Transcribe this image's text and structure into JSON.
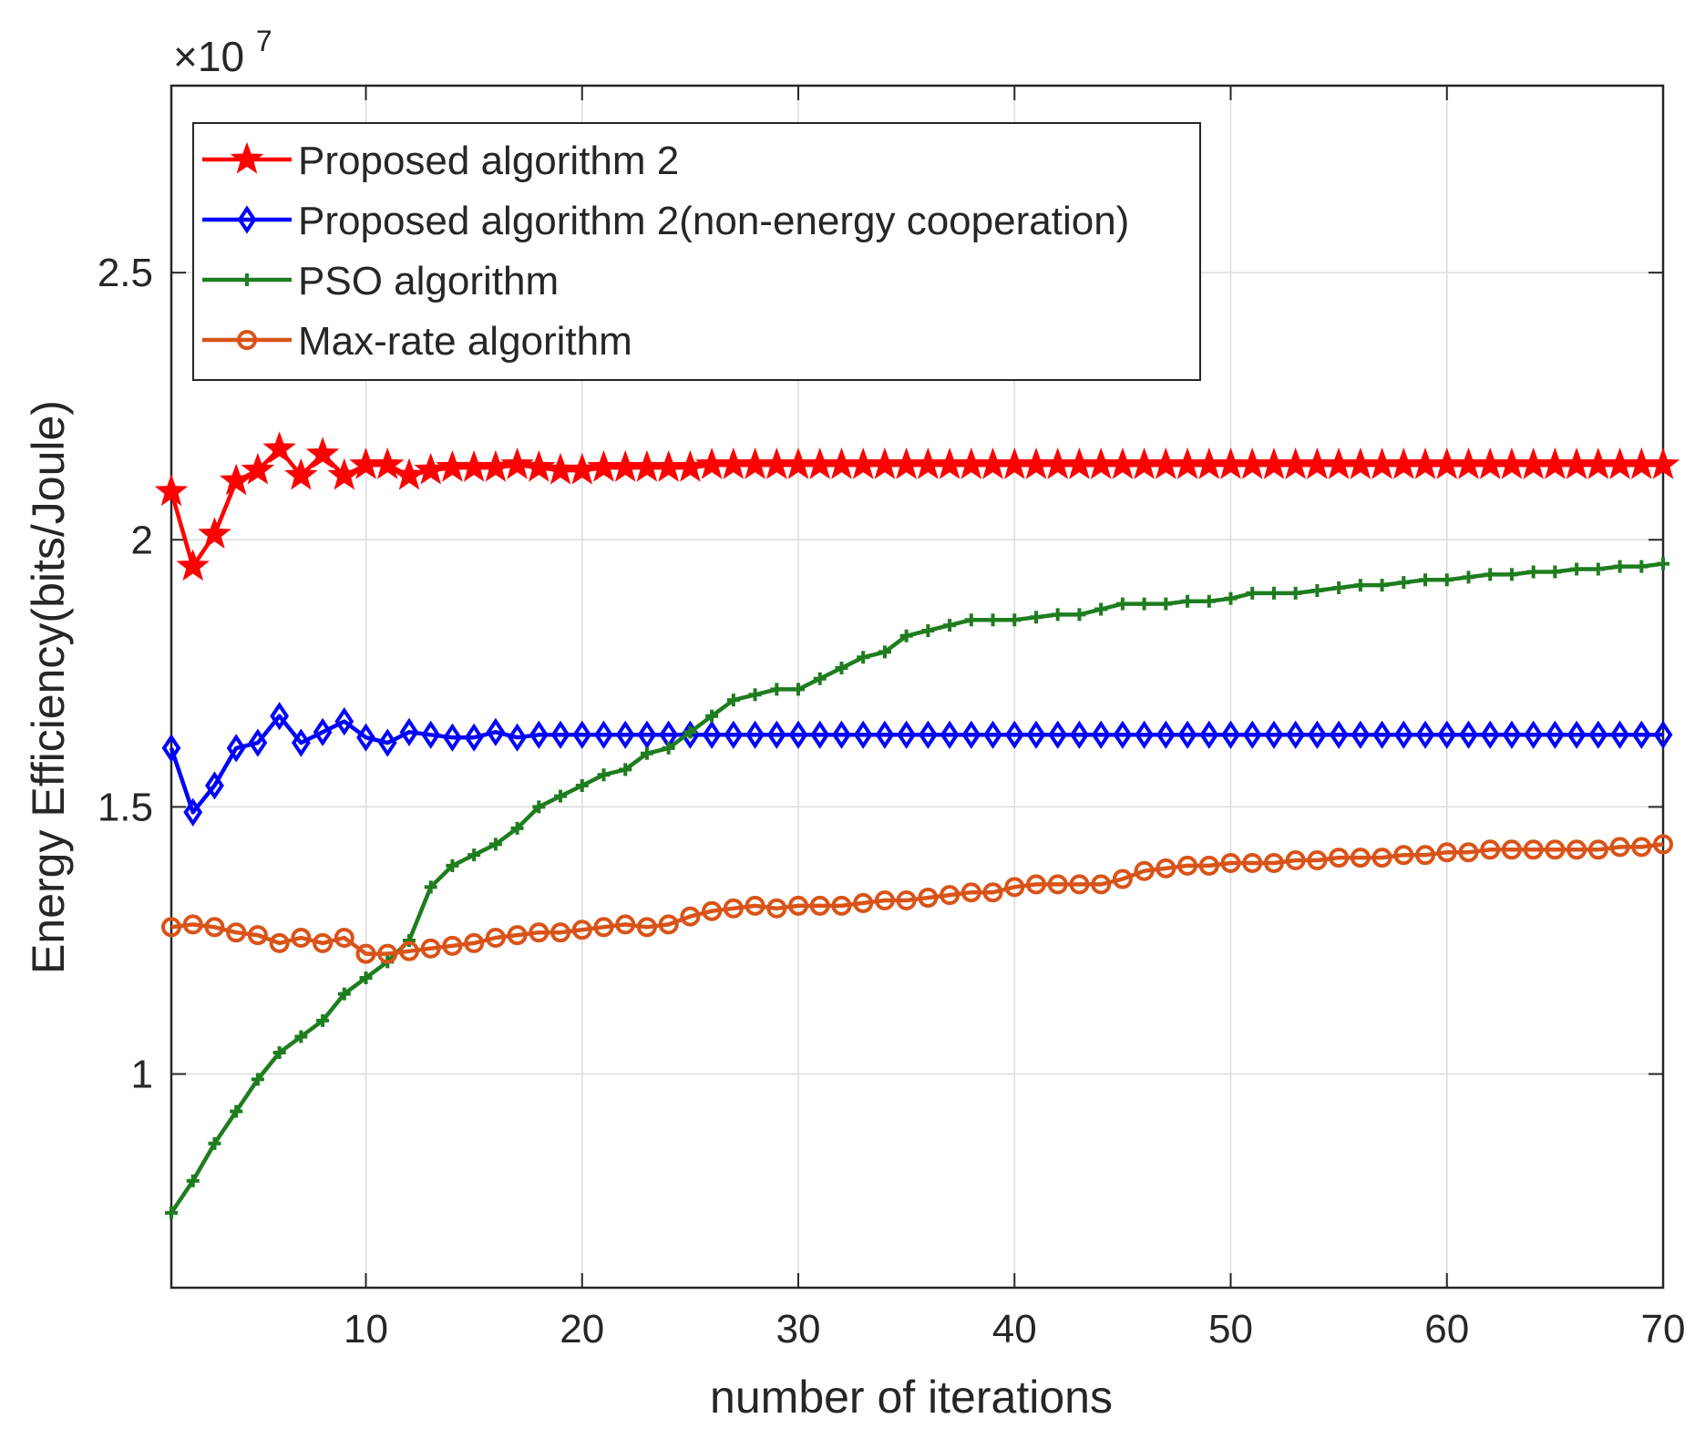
{
  "chart_data": {
    "type": "line",
    "title": "",
    "xlabel": "number of iterations",
    "ylabel": "Energy Efficiency(bits/Joule)",
    "exponent_label_base": "×10",
    "exponent_label_power": "7",
    "xlim": [
      1,
      70
    ],
    "ylim": [
      0.6,
      2.85
    ],
    "xticks": [
      10,
      20,
      30,
      40,
      50,
      60,
      70
    ],
    "xtick_labels": [
      "10",
      "20",
      "30",
      "40",
      "50",
      "60",
      "70"
    ],
    "yticks": [
      1,
      1.5,
      2,
      2.5
    ],
    "ytick_labels": [
      "1",
      "1.5",
      "2",
      "2.5"
    ],
    "grid": true,
    "legend_position": "top-left",
    "x": [
      1,
      2,
      3,
      4,
      5,
      6,
      7,
      8,
      9,
      10,
      11,
      12,
      13,
      14,
      15,
      16,
      17,
      18,
      19,
      20,
      21,
      22,
      23,
      24,
      25,
      26,
      27,
      28,
      29,
      30,
      31,
      32,
      33,
      34,
      35,
      36,
      37,
      38,
      39,
      40,
      41,
      42,
      43,
      44,
      45,
      46,
      47,
      48,
      49,
      50,
      51,
      52,
      53,
      54,
      55,
      56,
      57,
      58,
      59,
      60,
      61,
      62,
      63,
      64,
      65,
      66,
      67,
      68,
      69,
      70
    ],
    "series": [
      {
        "name": "Proposed algorithm 2",
        "color": "#ff0000",
        "marker": "star",
        "values": [
          2.09,
          1.95,
          2.01,
          2.11,
          2.13,
          2.17,
          2.12,
          2.16,
          2.12,
          2.14,
          2.14,
          2.12,
          2.13,
          2.135,
          2.135,
          2.135,
          2.14,
          2.135,
          2.13,
          2.13,
          2.135,
          2.135,
          2.135,
          2.135,
          2.135,
          2.14,
          2.14,
          2.14,
          2.14,
          2.14,
          2.14,
          2.14,
          2.14,
          2.14,
          2.14,
          2.14,
          2.14,
          2.14,
          2.14,
          2.14,
          2.14,
          2.14,
          2.14,
          2.14,
          2.14,
          2.14,
          2.14,
          2.14,
          2.14,
          2.14,
          2.14,
          2.14,
          2.14,
          2.14,
          2.14,
          2.14,
          2.14,
          2.14,
          2.14,
          2.14,
          2.14,
          2.14,
          2.14,
          2.14,
          2.14,
          2.14,
          2.14,
          2.14,
          2.14,
          2.14
        ]
      },
      {
        "name": "Proposed algorithm 2(non-energy cooperation)",
        "color": "#0000ff",
        "marker": "diamond",
        "values": [
          1.61,
          1.49,
          1.54,
          1.61,
          1.62,
          1.67,
          1.62,
          1.64,
          1.66,
          1.63,
          1.62,
          1.64,
          1.635,
          1.63,
          1.63,
          1.64,
          1.63,
          1.635,
          1.635,
          1.635,
          1.635,
          1.635,
          1.635,
          1.635,
          1.635,
          1.635,
          1.635,
          1.635,
          1.635,
          1.635,
          1.635,
          1.635,
          1.635,
          1.635,
          1.635,
          1.635,
          1.635,
          1.635,
          1.635,
          1.635,
          1.635,
          1.635,
          1.635,
          1.635,
          1.635,
          1.635,
          1.635,
          1.635,
          1.635,
          1.635,
          1.635,
          1.635,
          1.635,
          1.635,
          1.635,
          1.635,
          1.635,
          1.635,
          1.635,
          1.635,
          1.635,
          1.635,
          1.635,
          1.635,
          1.635,
          1.635,
          1.635,
          1.635,
          1.635,
          1.635
        ]
      },
      {
        "name": "PSO algorithm",
        "color": "#1e7d1e",
        "marker": "plus",
        "values": [
          0.74,
          0.8,
          0.87,
          0.93,
          0.99,
          1.04,
          1.07,
          1.1,
          1.15,
          1.18,
          1.21,
          1.25,
          1.35,
          1.39,
          1.41,
          1.43,
          1.46,
          1.5,
          1.52,
          1.54,
          1.56,
          1.57,
          1.6,
          1.61,
          1.64,
          1.67,
          1.7,
          1.71,
          1.72,
          1.72,
          1.74,
          1.76,
          1.78,
          1.79,
          1.82,
          1.83,
          1.84,
          1.85,
          1.85,
          1.85,
          1.855,
          1.86,
          1.86,
          1.87,
          1.88,
          1.88,
          1.88,
          1.885,
          1.885,
          1.89,
          1.9,
          1.9,
          1.9,
          1.905,
          1.91,
          1.915,
          1.915,
          1.92,
          1.925,
          1.925,
          1.93,
          1.935,
          1.935,
          1.94,
          1.94,
          1.945,
          1.945,
          1.95,
          1.95,
          1.955
        ]
      },
      {
        "name": "Max-rate algorithm",
        "color": "#d95319",
        "marker": "circle",
        "values": [
          1.275,
          1.28,
          1.275,
          1.265,
          1.26,
          1.245,
          1.255,
          1.245,
          1.255,
          1.225,
          1.225,
          1.23,
          1.235,
          1.24,
          1.245,
          1.255,
          1.26,
          1.265,
          1.265,
          1.27,
          1.275,
          1.28,
          1.275,
          1.28,
          1.295,
          1.305,
          1.31,
          1.315,
          1.31,
          1.315,
          1.315,
          1.315,
          1.32,
          1.325,
          1.325,
          1.33,
          1.335,
          1.34,
          1.34,
          1.35,
          1.355,
          1.355,
          1.355,
          1.355,
          1.365,
          1.38,
          1.385,
          1.39,
          1.39,
          1.395,
          1.395,
          1.395,
          1.4,
          1.4,
          1.405,
          1.405,
          1.405,
          1.41,
          1.41,
          1.415,
          1.415,
          1.42,
          1.42,
          1.42,
          1.42,
          1.42,
          1.42,
          1.425,
          1.425,
          1.43
        ]
      }
    ]
  }
}
